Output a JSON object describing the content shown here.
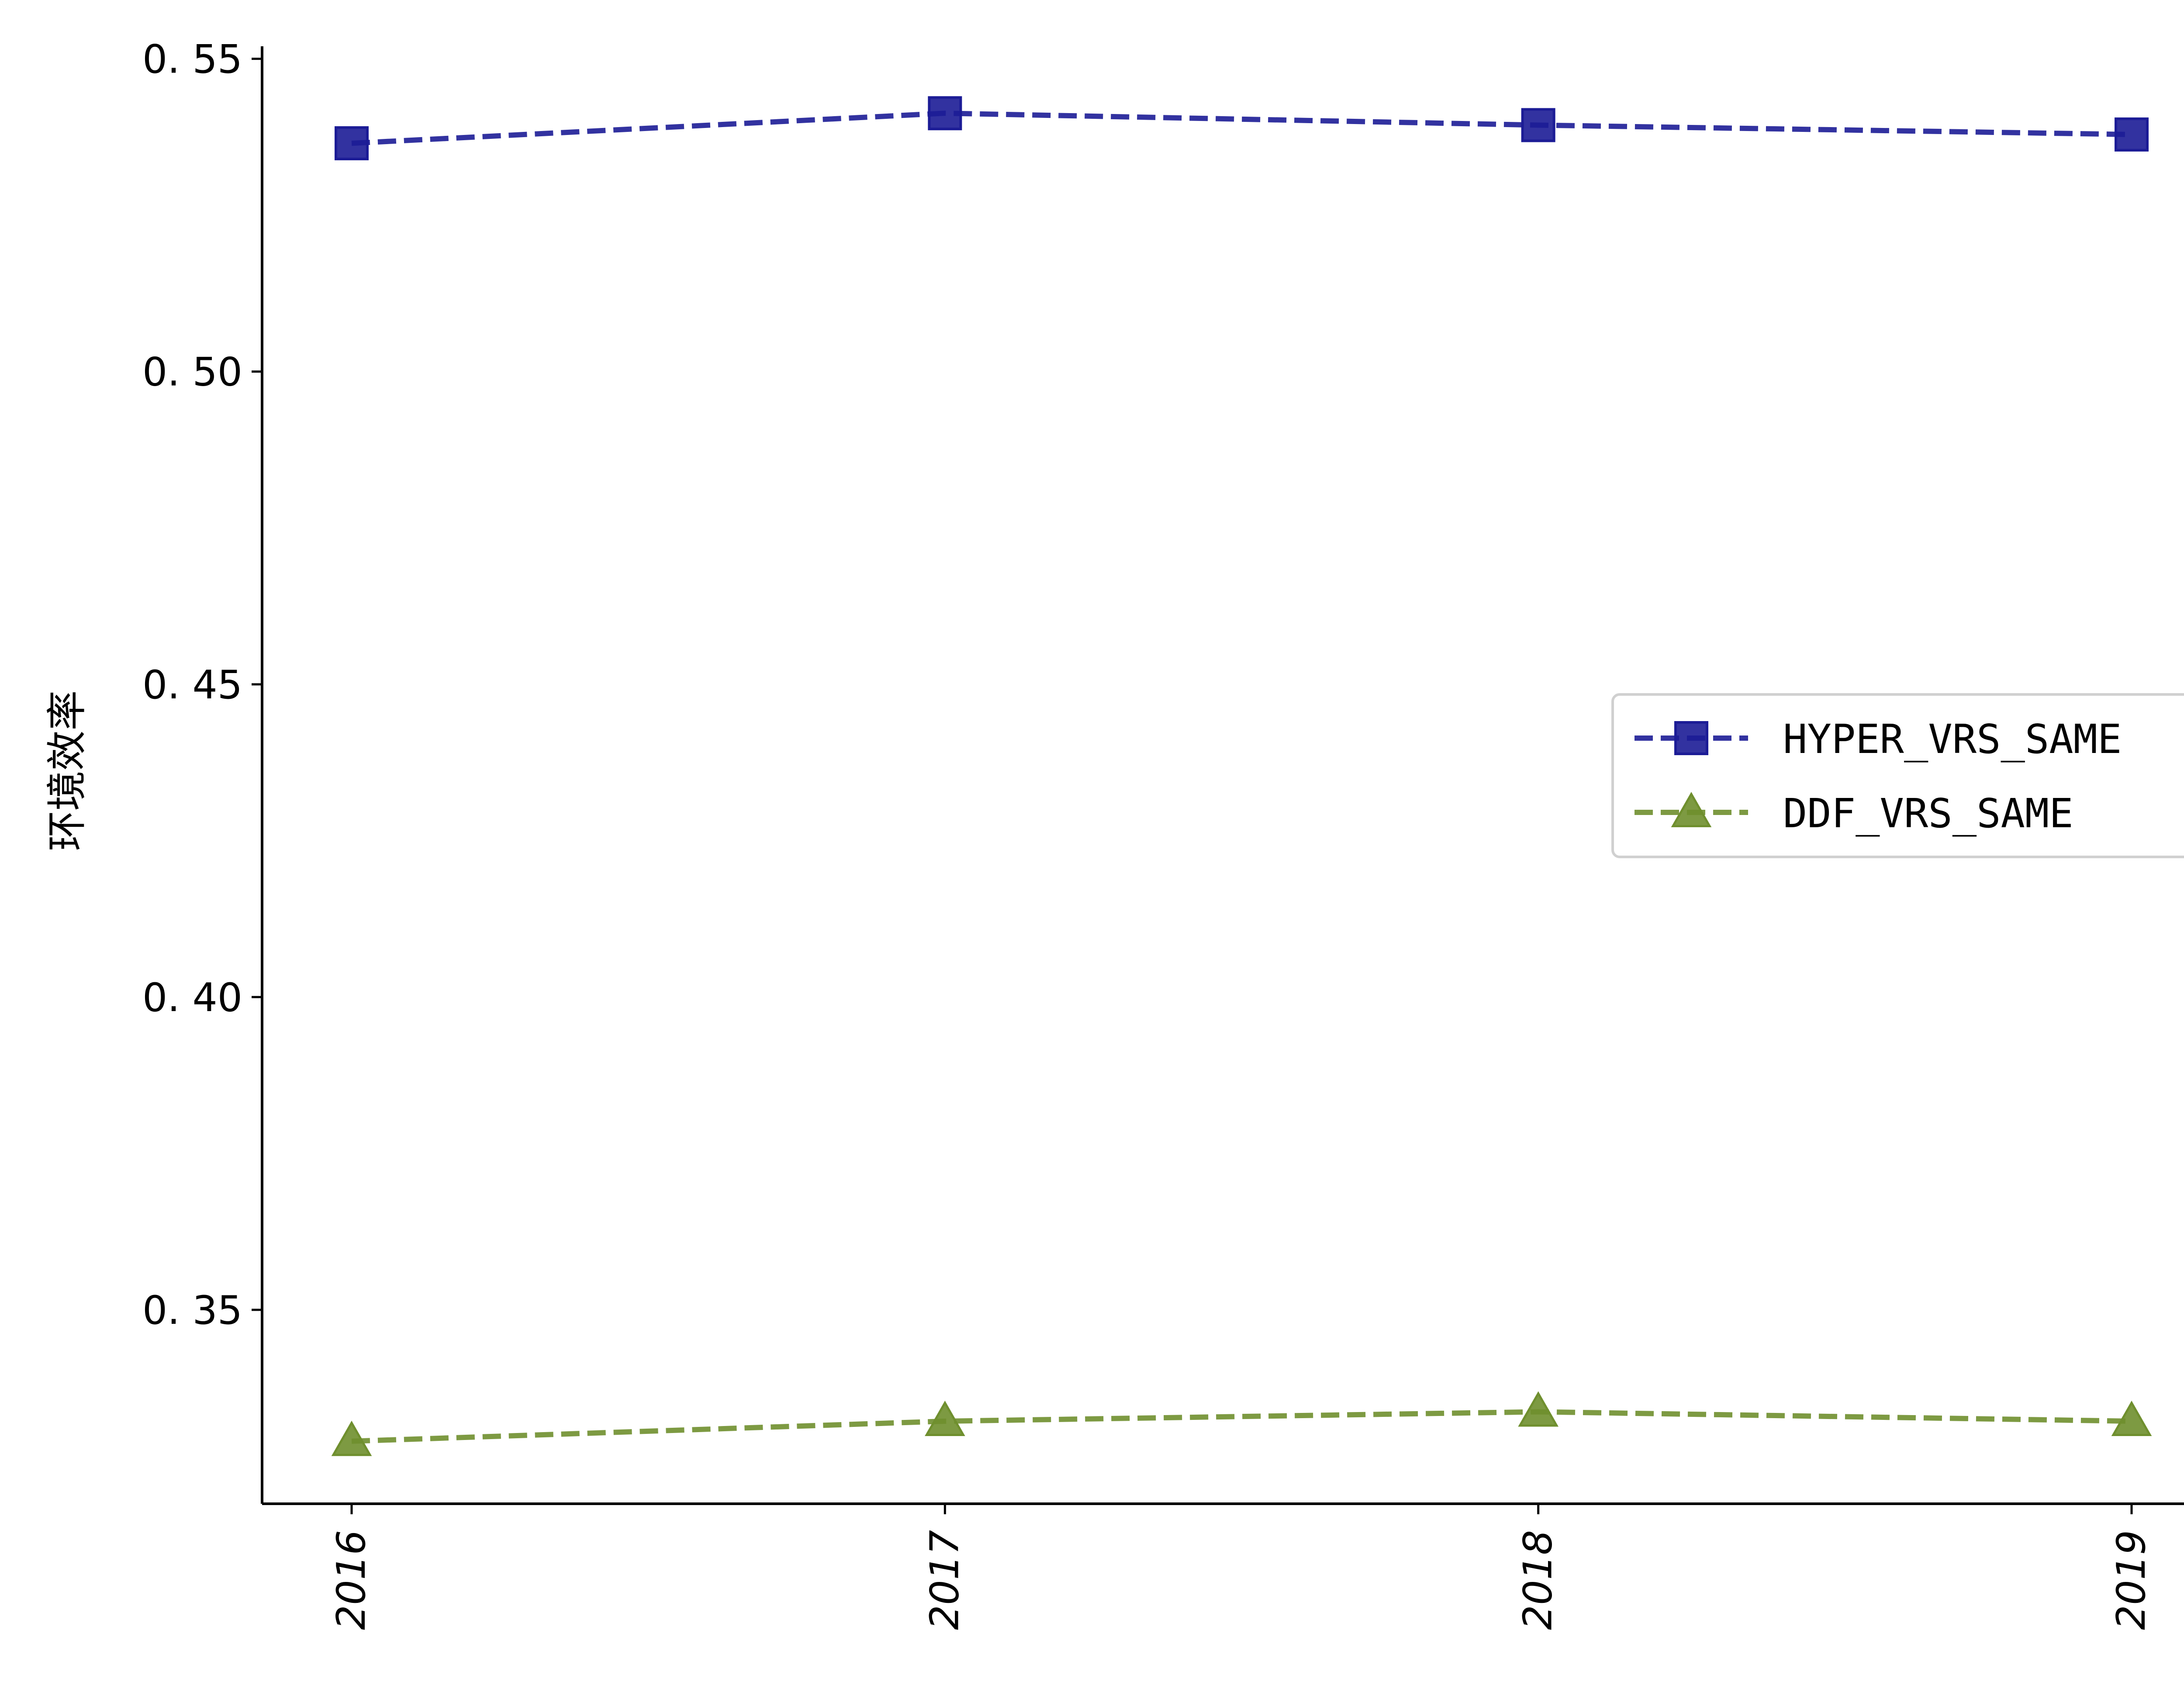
{
  "chart_data": {
    "type": "line",
    "x": [
      "2016",
      "2017",
      "2018",
      "2019"
    ],
    "ylabel": "环境效率",
    "xlabel": "",
    "ylim": [
      0.319,
      0.552
    ],
    "yticks": [
      0.35,
      0.4,
      0.45,
      0.5,
      0.55
    ],
    "ytick_labels": [
      "0. 35",
      "0. 40",
      "0. 45",
      "0. 50",
      "0. 55"
    ],
    "xtick_rotation": "vertical",
    "grid": false,
    "legend_position": "center-right",
    "series": [
      {
        "name": "HYPER_VRS_SAME",
        "values": [
          0.5365,
          0.5413,
          0.5394,
          0.5379
        ],
        "color": "#1c1c96",
        "marker": "square",
        "linestyle": "dashed"
      },
      {
        "name": "DDF_VRS_SAME",
        "values": [
          0.329,
          0.3322,
          0.3337,
          0.3322
        ],
        "color": "#6f8f2e",
        "marker": "triangle",
        "linestyle": "dashed"
      }
    ]
  }
}
